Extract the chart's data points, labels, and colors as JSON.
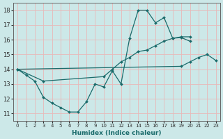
{
  "xlabel": "Humidex (Indice chaleur)",
  "xlim": [
    -0.5,
    23.5
  ],
  "ylim": [
    10.5,
    18.5
  ],
  "yticks": [
    11,
    12,
    13,
    14,
    15,
    16,
    17,
    18
  ],
  "xticks": [
    0,
    1,
    2,
    3,
    4,
    5,
    6,
    7,
    8,
    9,
    10,
    11,
    12,
    13,
    14,
    15,
    16,
    17,
    18,
    19,
    20,
    21,
    22,
    23
  ],
  "bg_color": "#cce8e8",
  "grid_color": "#e8b8b8",
  "line_color": "#1a6b6b",
  "line1": {
    "x": [
      0,
      1,
      2,
      3,
      4,
      5,
      6,
      7,
      8,
      9,
      10,
      11,
      12,
      13,
      14,
      15,
      16,
      17,
      18,
      19,
      20
    ],
    "y": [
      14.0,
      13.6,
      13.2,
      12.1,
      11.7,
      11.4,
      11.1,
      11.1,
      11.8,
      13.0,
      12.8,
      13.9,
      13.0,
      16.1,
      18.0,
      18.0,
      17.15,
      17.5,
      16.1,
      16.15,
      15.9
    ]
  },
  "line2": {
    "x": [
      0,
      3,
      10,
      11,
      12,
      13,
      14,
      15,
      16,
      17,
      18,
      19,
      20
    ],
    "y": [
      14.0,
      13.2,
      13.5,
      14.0,
      14.5,
      14.8,
      15.2,
      15.3,
      15.6,
      15.9,
      16.1,
      16.2,
      16.2
    ]
  },
  "line3": {
    "x": [
      0,
      19,
      20,
      21,
      22,
      23
    ],
    "y": [
      14.0,
      14.2,
      14.5,
      14.8,
      15.0,
      14.6
    ]
  }
}
